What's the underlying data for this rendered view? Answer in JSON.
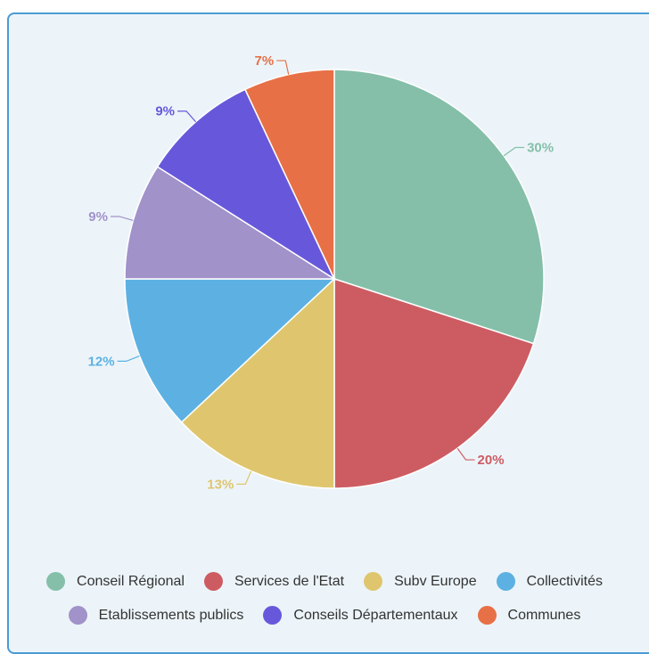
{
  "chart_data": {
    "type": "pie",
    "slices": [
      {
        "label": "Conseil Régional",
        "value": 30,
        "value_label": "30%",
        "color": "#85bfa9"
      },
      {
        "label": "Services de l'Etat",
        "value": 20,
        "value_label": "20%",
        "color": "#cd5c62"
      },
      {
        "label": "Subv Europe",
        "value": 13,
        "value_label": "13%",
        "color": "#dfc66e"
      },
      {
        "label": "Collectivités",
        "value": 12,
        "value_label": "12%",
        "color": "#5db1e2"
      },
      {
        "label": "Etablissements publics",
        "value": 9,
        "value_label": "9%",
        "color": "#a192ca"
      },
      {
        "label": "Conseils Départementaux",
        "value": 9,
        "value_label": "9%",
        "color": "#6758db"
      },
      {
        "label": "Communes",
        "value": 7,
        "value_label": "7%",
        "color": "#e87046"
      }
    ],
    "start": "top",
    "direction": "clockwise",
    "legend_position": "bottom",
    "legend_rows": [
      [
        0,
        1,
        2,
        3
      ],
      [
        4,
        5,
        6
      ]
    ]
  }
}
